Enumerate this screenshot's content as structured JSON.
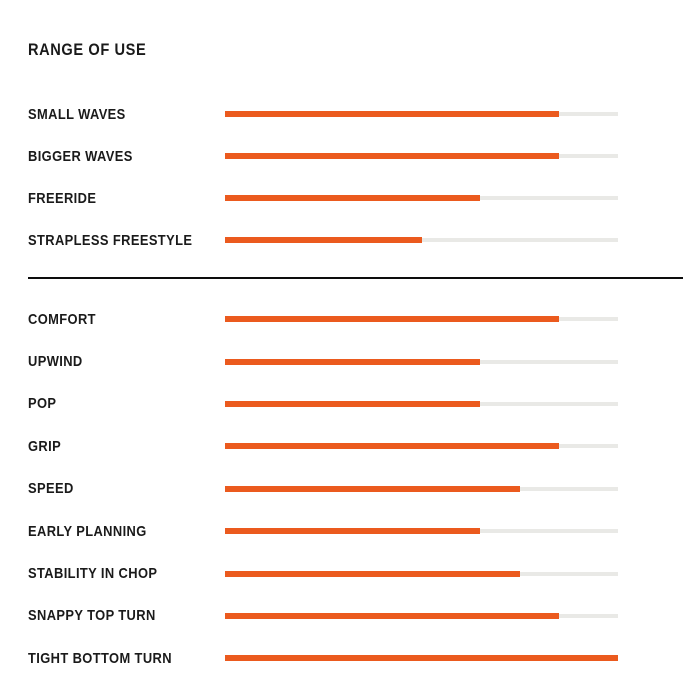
{
  "colors": {
    "bar_fill": "#EB5A1E",
    "bar_track": "#E9E9E6",
    "text": "#1A1A1A",
    "divider": "#0D0D0D",
    "background": "#FFFFFF"
  },
  "chart_data": {
    "type": "bar",
    "orientation": "horizontal",
    "title": "RANGE OF USE",
    "max": 10,
    "legend": "none",
    "grid": false,
    "sections": [
      {
        "name": "range-of-use",
        "rows": [
          {
            "label": "SMALL WAVES",
            "value": 8.5
          },
          {
            "label": "BIGGER WAVES",
            "value": 8.5
          },
          {
            "label": "FREERIDE",
            "value": 6.5
          },
          {
            "label": "STRAPLESS FREESTYLE",
            "value": 5
          }
        ]
      },
      {
        "name": "performance",
        "rows": [
          {
            "label": "COMFORT",
            "value": 8.5
          },
          {
            "label": "UPWIND",
            "value": 6.5
          },
          {
            "label": "POP",
            "value": 6.5
          },
          {
            "label": "GRIP",
            "value": 8.5
          },
          {
            "label": "SPEED",
            "value": 7.5
          },
          {
            "label": "EARLY PLANNING",
            "value": 6.5
          },
          {
            "label": "STABILITY IN CHOP",
            "value": 7.5
          },
          {
            "label": "SNAPPY TOP TURN",
            "value": 8.5
          },
          {
            "label": "TIGHT BOTTOM TURN",
            "value": 10
          }
        ]
      }
    ]
  }
}
